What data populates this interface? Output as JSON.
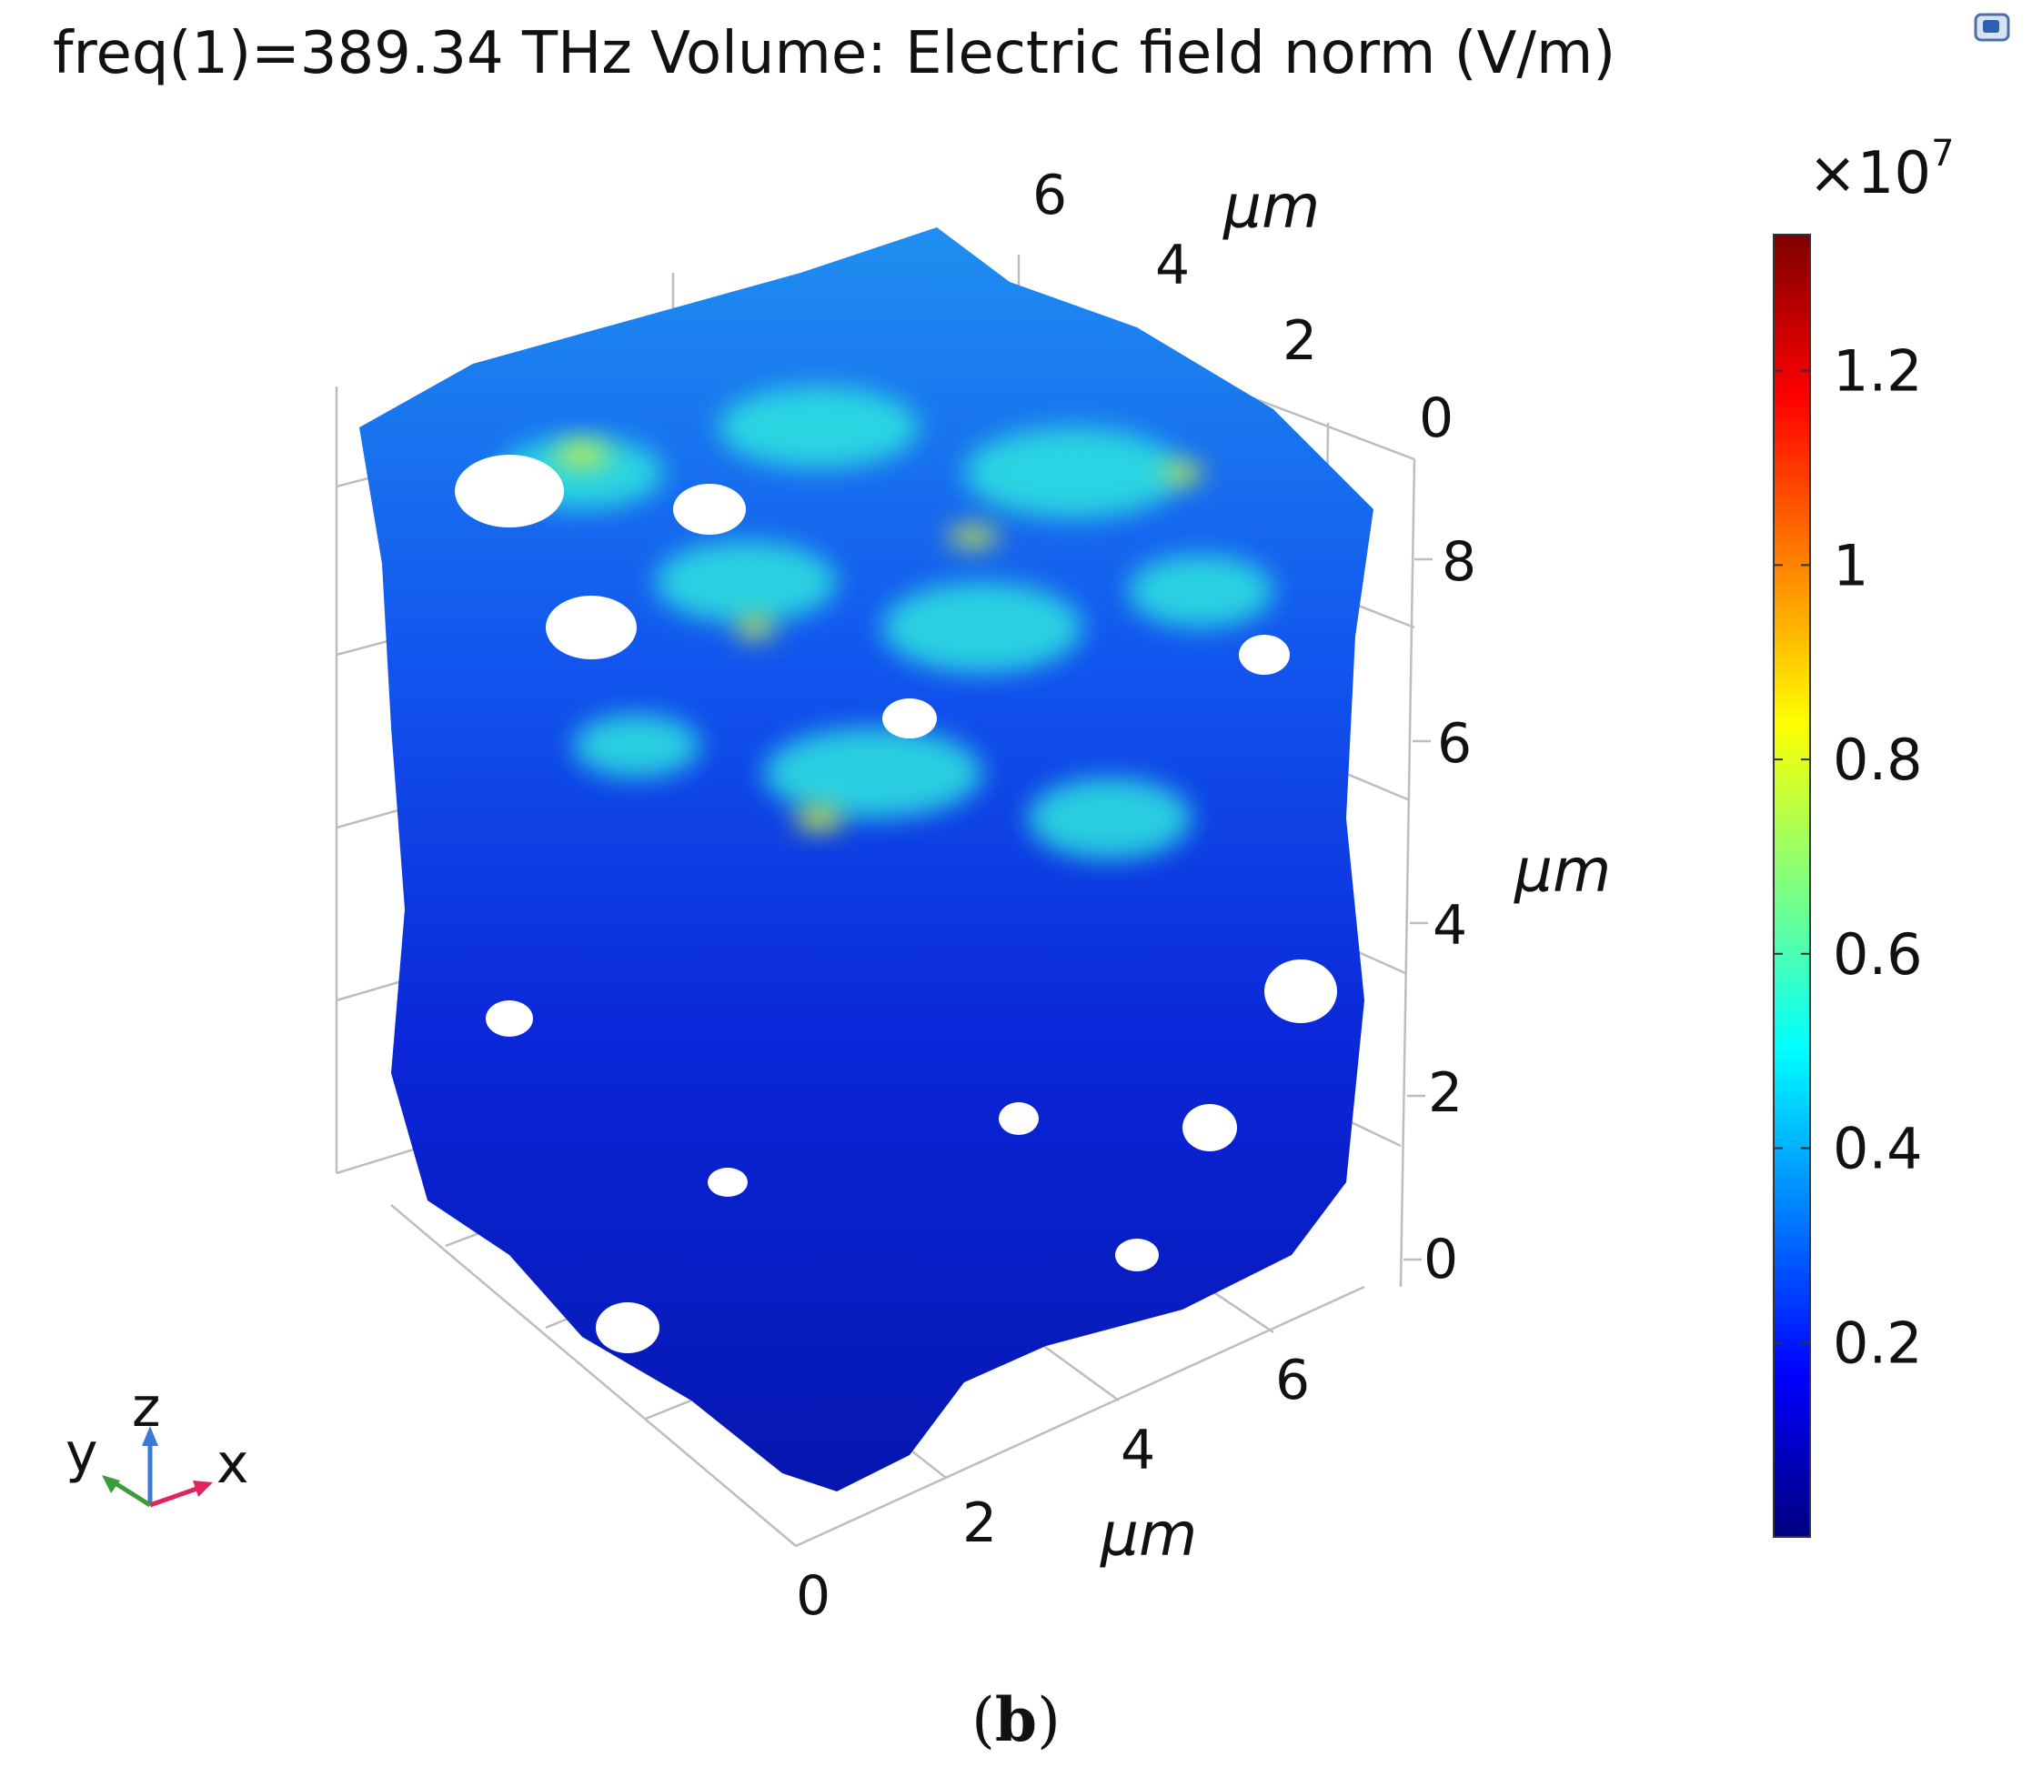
{
  "title": "freq(1)=389.34 THz  Volume: Electric field norm (V/m)",
  "panel_label": "b",
  "colors": {
    "colormap": [
      "#00007f",
      "#0000ff",
      "#007fff",
      "#00ffff",
      "#7fff7f",
      "#ffff00",
      "#ff7f00",
      "#ff0000",
      "#7f0000"
    ],
    "axis_line": "#bdbdbd"
  },
  "orientation_triad": {
    "x_label": "x",
    "y_label": "y",
    "z_label": "z"
  },
  "chart_data": {
    "type": "heatmap",
    "title": "freq(1)=389.34 THz  Volume: Electric field norm (V/m)",
    "axes": {
      "x": {
        "label": "µm",
        "ticks": [
          "0",
          "2",
          "4",
          "6"
        ],
        "range": [
          0,
          8
        ]
      },
      "y": {
        "label": "µm",
        "ticks": [
          "0",
          "2",
          "4",
          "6"
        ],
        "range": [
          0,
          8
        ]
      },
      "z": {
        "label": "µm",
        "ticks": [
          "0",
          "2",
          "4",
          "6",
          "8"
        ],
        "range": [
          0,
          9
        ]
      }
    },
    "colorbar": {
      "multiplier": "×10",
      "exponent": "7",
      "ticks": [
        "0.2",
        "0.4",
        "0.6",
        "0.8",
        "1",
        "1.2"
      ],
      "tick_values": [
        0.2,
        0.4,
        0.6,
        0.8,
        1.0,
        1.2
      ],
      "range": [
        0.0,
        1.34
      ]
    },
    "grid": true
  }
}
